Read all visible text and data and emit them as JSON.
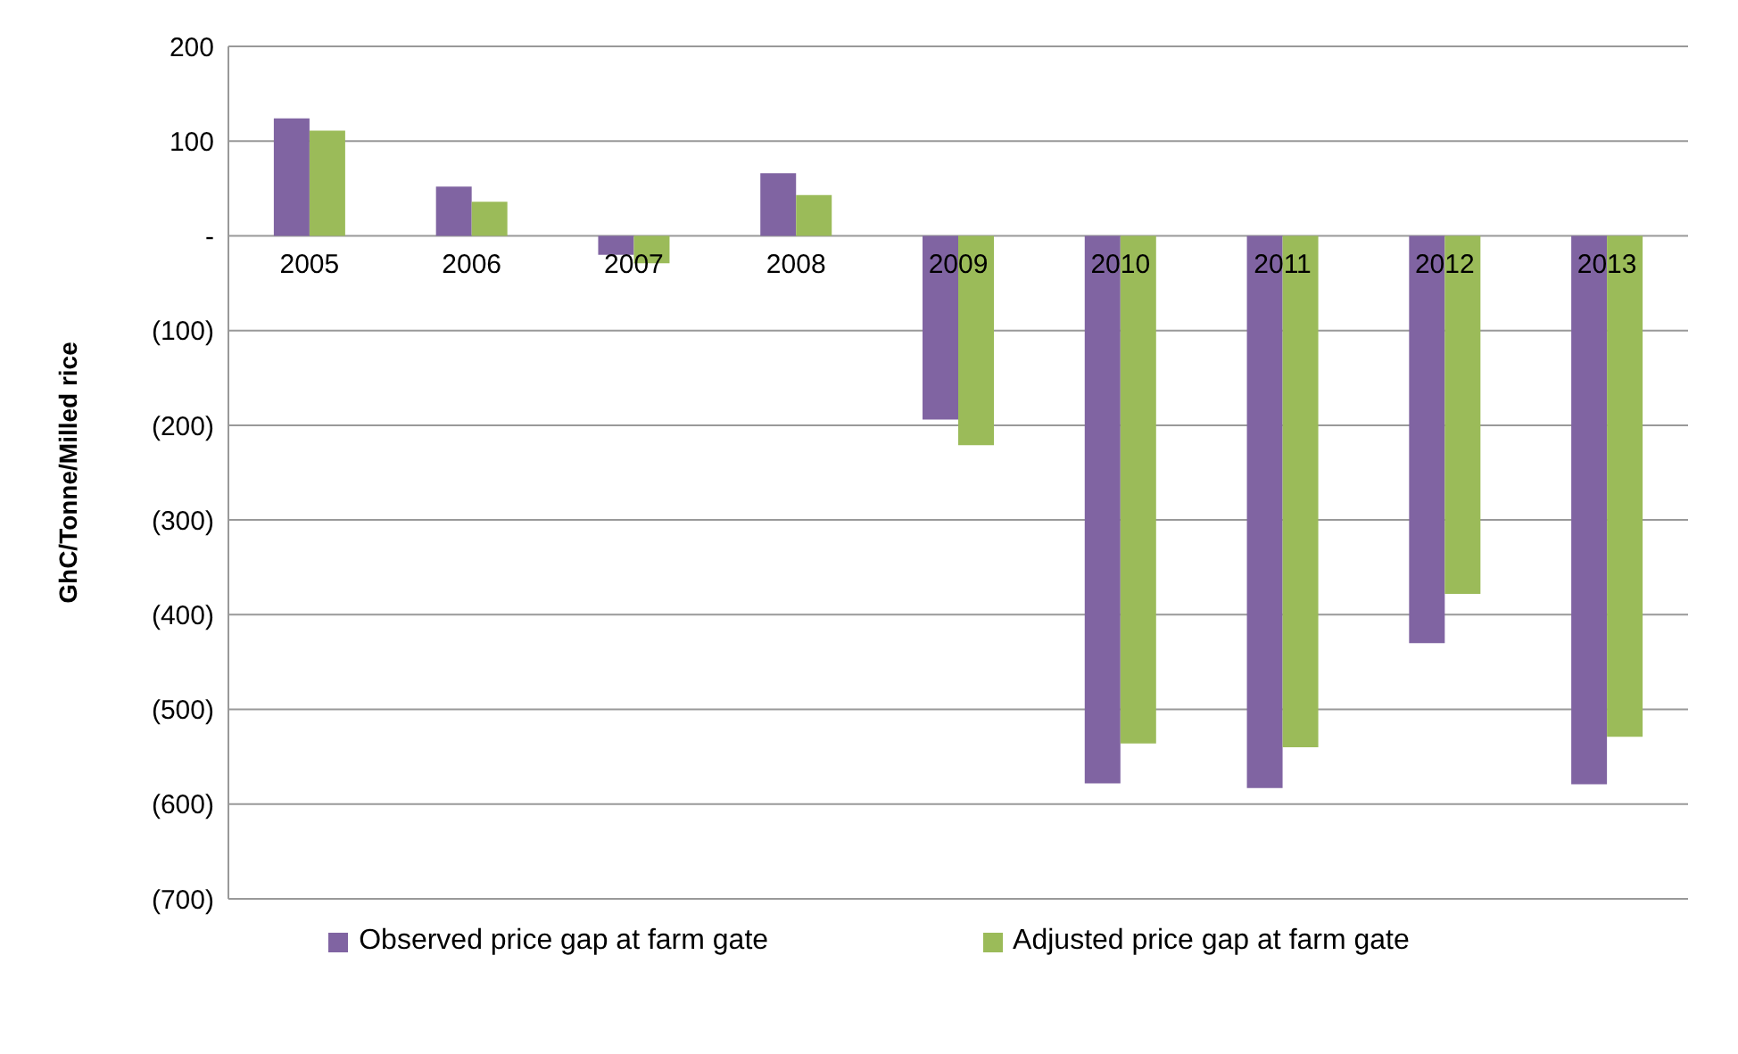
{
  "chart_data": {
    "type": "bar",
    "ylabel": "GhC/Tonne/Milled rice",
    "categories": [
      "2005",
      "2006",
      "2007",
      "2008",
      "2009",
      "2010",
      "2011",
      "2012",
      "2013"
    ],
    "series": [
      {
        "name": "Observed price gap at farm gate",
        "color": "#8064a2",
        "values": [
          124,
          52,
          -20,
          66,
          -194,
          -578,
          -583,
          -430,
          -579
        ]
      },
      {
        "name": "Adjusted price gap at farm gate",
        "color": "#9bbb59",
        "values": [
          111,
          36,
          -29,
          43,
          -221,
          -536,
          -540,
          -378,
          -529
        ]
      }
    ],
    "ylim": [
      -700,
      200
    ],
    "yticks": [
      200,
      100,
      {
        "value": 0,
        "label": "-"
      },
      {
        "value": -100,
        "label": "(100)"
      },
      {
        "value": -200,
        "label": "(200)"
      },
      {
        "value": -300,
        "label": "(300)"
      },
      {
        "value": -400,
        "label": "(400)"
      },
      {
        "value": -500,
        "label": "(500)"
      },
      {
        "value": -600,
        "label": "(600)"
      },
      {
        "value": -700,
        "label": "(700)"
      }
    ],
    "grid": "y",
    "legend": "bottom"
  }
}
